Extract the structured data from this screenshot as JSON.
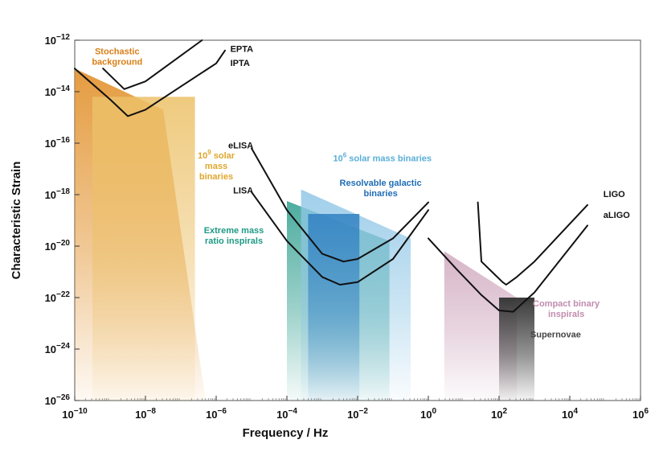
{
  "chart_data": {
    "type": "area",
    "xlabel": "Frequency / Hz",
    "ylabel": "Characteristic Strain",
    "xscale": "log",
    "yscale": "log",
    "xlim_exp": [
      -10,
      6
    ],
    "ylim_exp": [
      -26,
      -12
    ],
    "xticks_exp": [
      -10,
      -8,
      -6,
      -4,
      -2,
      0,
      2,
      4,
      6
    ],
    "yticks_exp": [
      -26,
      -24,
      -22,
      -20,
      -18,
      -16,
      -14,
      -12
    ],
    "tick_base": "10",
    "grid": false,
    "curves": [
      {
        "name": "EPTA",
        "points": [
          [
            -9.2,
            -13.1
          ],
          [
            -8.6,
            -13.9
          ],
          [
            -8.0,
            -13.6
          ],
          [
            -7.0,
            -12.6
          ],
          [
            -6.4,
            -12.0
          ]
        ]
      },
      {
        "name": "IPTA",
        "points": [
          [
            -10.0,
            -13.1
          ],
          [
            -9.0,
            -14.3
          ],
          [
            -8.5,
            -14.95
          ],
          [
            -8.0,
            -14.7
          ],
          [
            -7.0,
            -13.8
          ],
          [
            -6.0,
            -12.9
          ],
          [
            -5.75,
            -12.4
          ]
        ]
      },
      {
        "name": "eLISA",
        "points": [
          [
            -5.0,
            -16.2
          ],
          [
            -4.0,
            -18.6
          ],
          [
            -3.0,
            -20.3
          ],
          [
            -2.4,
            -20.6
          ],
          [
            -2.0,
            -20.5
          ],
          [
            -1.0,
            -19.7
          ],
          [
            0.0,
            -18.3
          ]
        ]
      },
      {
        "name": "LISA",
        "points": [
          [
            -5.0,
            -17.9
          ],
          [
            -4.0,
            -19.8
          ],
          [
            -3.0,
            -21.2
          ],
          [
            -2.5,
            -21.5
          ],
          [
            -2.0,
            -21.4
          ],
          [
            -1.0,
            -20.5
          ],
          [
            0.0,
            -18.6
          ]
        ]
      },
      {
        "name": "LIGO",
        "points": [
          [
            1.4,
            -18.3
          ],
          [
            1.5,
            -20.6
          ],
          [
            1.8,
            -21.0
          ],
          [
            2.1,
            -21.4
          ],
          [
            2.2,
            -21.5
          ],
          [
            2.5,
            -21.2
          ],
          [
            3.0,
            -20.6
          ],
          [
            4.5,
            -18.4
          ]
        ]
      },
      {
        "name": "aLIGO",
        "points": [
          [
            0.0,
            -19.7
          ],
          [
            0.8,
            -20.9
          ],
          [
            1.5,
            -21.9
          ],
          [
            2.0,
            -22.5
          ],
          [
            2.4,
            -22.55
          ],
          [
            3.0,
            -21.8
          ],
          [
            4.5,
            -19.2
          ]
        ]
      }
    ],
    "regions": [
      {
        "name": "Stochastic background",
        "color": "#e08a1e",
        "points": [
          [
            -10.0,
            -13.1
          ],
          [
            -7.5,
            -14.7
          ],
          [
            -6.3,
            -26.0
          ],
          [
            -10.0,
            -26.0
          ]
        ]
      },
      {
        "name": "10^9 solar mass binaries",
        "color": "#ecc168",
        "points": [
          [
            -9.5,
            -14.2
          ],
          [
            -6.6,
            -14.2
          ],
          [
            -6.6,
            -26.0
          ],
          [
            -9.5,
            -26.0
          ]
        ]
      },
      {
        "name": "Extreme mass ratio inspirals",
        "color": "#2e9e8e",
        "points": [
          [
            -4.0,
            -18.25
          ],
          [
            -1.1,
            -19.8
          ],
          [
            -1.1,
            -26.0
          ],
          [
            -4.0,
            -26.0
          ]
        ]
      },
      {
        "name": "10^6 solar mass binaries",
        "color": "#8fc6e6",
        "points": [
          [
            -3.6,
            -17.8
          ],
          [
            -0.5,
            -19.7
          ],
          [
            -0.5,
            -26.0
          ],
          [
            -3.6,
            -26.0
          ]
        ]
      },
      {
        "name": "Resolvable galactic binaries",
        "color": "#2f7fc2",
        "points": [
          [
            -3.4,
            -18.75
          ],
          [
            -1.95,
            -18.75
          ],
          [
            -1.95,
            -26.0
          ],
          [
            -3.4,
            -26.0
          ]
        ]
      },
      {
        "name": "Compact binary inspirals",
        "color": "#cfa8be",
        "points": [
          [
            0.45,
            -20.2
          ],
          [
            2.5,
            -22.0
          ],
          [
            2.5,
            -26.0
          ],
          [
            0.45,
            -26.0
          ]
        ]
      },
      {
        "name": "Supernovae",
        "color": "#3a3a3a",
        "points": [
          [
            2.0,
            -22.0
          ],
          [
            3.0,
            -22.0
          ],
          [
            3.0,
            -26.0
          ],
          [
            2.0,
            -26.0
          ]
        ]
      }
    ],
    "annotations": [
      {
        "id": "stochastic",
        "lines": [
          "Stochastic",
          "background"
        ],
        "color": "#d87f16",
        "align": "middle",
        "at": [
          -8.8,
          -12.55
        ]
      },
      {
        "id": "solar9",
        "lines": [
          "10^9 solar",
          "mass",
          "binaries"
        ],
        "color": "#e0a62c",
        "align": "middle",
        "at": [
          -6.0,
          -16.6
        ]
      },
      {
        "id": "solar6",
        "lines": [
          "10^6 solar mass binaries"
        ],
        "color": "#5aaed8",
        "align": "middle",
        "at": [
          -1.3,
          -16.7
        ]
      },
      {
        "id": "galactic",
        "lines": [
          "Resolvable galactic",
          "binaries"
        ],
        "color": "#1f6db5",
        "align": "middle",
        "at": [
          -1.35,
          -17.65
        ]
      },
      {
        "id": "emri",
        "lines": [
          "Extreme mass",
          "ratio inspirals"
        ],
        "color": "#1f9a86",
        "align": "middle",
        "at": [
          -5.5,
          -19.5
        ]
      },
      {
        "id": "compact",
        "lines": [
          "Compact binary",
          "inspirals"
        ],
        "color": "#c28cad",
        "align": "middle",
        "at": [
          3.9,
          -22.35
        ]
      },
      {
        "id": "supernovae",
        "lines": [
          "Supernovae"
        ],
        "color": "#444444",
        "align": "middle",
        "at": [
          3.6,
          -23.55
        ]
      },
      {
        "id": "epta",
        "lines": [
          "EPTA"
        ],
        "color": "#111111",
        "align": "start",
        "at": [
          -5.6,
          -12.45
        ]
      },
      {
        "id": "ipta",
        "lines": [
          "IPTA"
        ],
        "color": "#111111",
        "align": "start",
        "at": [
          -5.6,
          -13.0
        ]
      },
      {
        "id": "elisa",
        "lines": [
          "eLISA"
        ],
        "color": "#111111",
        "align": "end",
        "at": [
          -4.95,
          -16.2
        ]
      },
      {
        "id": "lisa",
        "lines": [
          "LISA"
        ],
        "color": "#111111",
        "align": "end",
        "at": [
          -4.95,
          -17.95
        ]
      },
      {
        "id": "ligo",
        "lines": [
          "LIGO"
        ],
        "color": "#111111",
        "align": "start",
        "at": [
          4.95,
          -18.1
        ]
      },
      {
        "id": "aligo",
        "lines": [
          "aLIGO"
        ],
        "color": "#111111",
        "align": "start",
        "at": [
          4.95,
          -18.9
        ]
      }
    ]
  }
}
